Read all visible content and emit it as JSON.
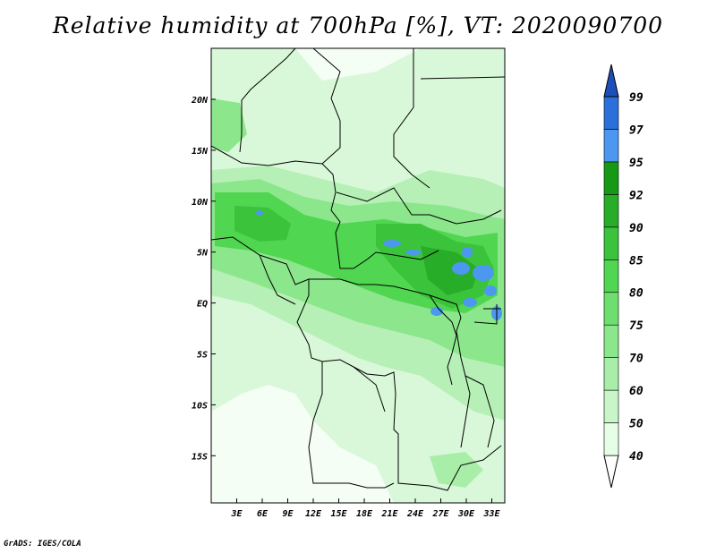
{
  "title": "Relative humidity at 700hPa [%], VT: 2020090700",
  "credit": "GrADS: IGES/COLA",
  "map": {
    "lon_labels": [
      "3E",
      "6E",
      "9E",
      "12E",
      "15E",
      "18E",
      "21E",
      "24E",
      "27E",
      "30E",
      "33E"
    ],
    "lat_labels": [
      "20N",
      "15N",
      "10N",
      "5N",
      "EQ",
      "5S",
      "10S",
      "15S"
    ]
  },
  "colorbar": {
    "levels": [
      "40",
      "50",
      "60",
      "70",
      "75",
      "80",
      "85",
      "90",
      "92",
      "95",
      "97",
      "99"
    ],
    "colors": [
      "#ffffff",
      "#e6fde6",
      "#c8f6c8",
      "#a8eea8",
      "#8ce68c",
      "#6ede6e",
      "#50d650",
      "#3cc33c",
      "#28ad28",
      "#169a16",
      "#4c98f0",
      "#2a6fda",
      "#1e4fb8"
    ]
  },
  "legend_colors": {
    "dry": "#ffffff",
    "moist": "#3cc33c",
    "saturated": "#2a6fda"
  }
}
